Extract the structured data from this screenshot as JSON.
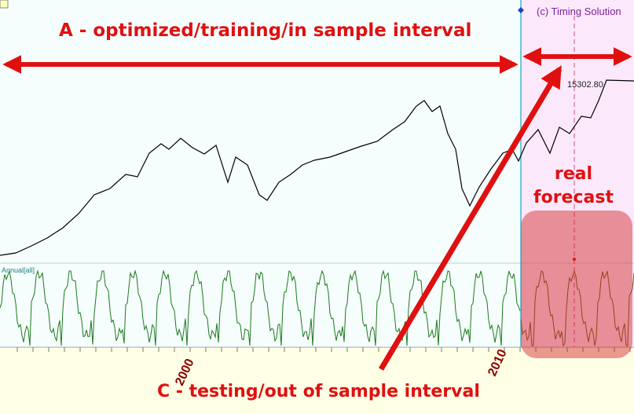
{
  "window": {
    "copyright": "(c) Timing Solution",
    "price_label": "15302.80",
    "indicator_label": "Annual[all]",
    "x_labels": [
      "2000",
      "2010"
    ]
  },
  "annotations": {
    "a": "A - optimized/training/in sample interval",
    "real": "real",
    "forecast": "forecast",
    "c": "C -  testing/out of sample interval"
  }
}
